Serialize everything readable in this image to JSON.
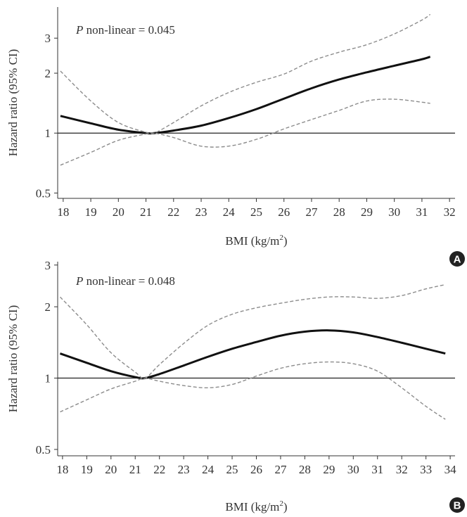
{
  "chart_data": [
    {
      "type": "line",
      "panel_label": "A",
      "annotation": {
        "p": "P",
        "rest": " non-linear = 0.045"
      },
      "xlabel": {
        "main": "BMI (kg/m",
        "sup": "2",
        "close": ")"
      },
      "ylabel": "Hazard ratio (95% CI)",
      "y_scale": "log",
      "xlim": [
        17.8,
        32.2
      ],
      "ylim": [
        0.47,
        4.3
      ],
      "xticks": [
        18,
        19,
        20,
        21,
        22,
        23,
        24,
        25,
        26,
        27,
        28,
        29,
        30,
        31,
        32
      ],
      "yticks": [
        0.5,
        1,
        2,
        3
      ],
      "ytick_labels": [
        "0.5",
        "1",
        "2",
        "3"
      ],
      "reference_line": 1,
      "series": [
        {
          "role": "estimate",
          "style": "solid",
          "x": [
            17.9,
            19,
            20,
            21,
            21.3,
            22,
            23,
            24,
            25,
            26,
            27,
            28,
            29,
            30,
            31,
            31.3
          ],
          "y": [
            1.22,
            1.12,
            1.04,
            1.0,
            1.0,
            1.03,
            1.09,
            1.19,
            1.32,
            1.49,
            1.68,
            1.86,
            2.02,
            2.18,
            2.35,
            2.42
          ]
        },
        {
          "role": "upper",
          "style": "dashed",
          "x": [
            17.9,
            19,
            20,
            21,
            21.3,
            22,
            23,
            24,
            25,
            26,
            27,
            28,
            29,
            30,
            31,
            31.3
          ],
          "y": [
            2.05,
            1.45,
            1.13,
            1.01,
            1.0,
            1.13,
            1.37,
            1.6,
            1.8,
            1.98,
            2.3,
            2.55,
            2.78,
            3.15,
            3.7,
            3.95
          ]
        },
        {
          "role": "lower",
          "style": "dashed",
          "x": [
            17.9,
            19,
            20,
            21,
            21.3,
            22,
            23,
            24,
            25,
            26,
            27,
            28,
            29,
            30,
            31,
            31.3
          ],
          "y": [
            0.69,
            0.8,
            0.92,
            0.99,
            1.0,
            0.95,
            0.86,
            0.86,
            0.93,
            1.05,
            1.17,
            1.3,
            1.45,
            1.48,
            1.43,
            1.41
          ]
        }
      ]
    },
    {
      "type": "line",
      "panel_label": "B",
      "annotation": {
        "p": "P",
        "rest": " non-linear = 0.048"
      },
      "xlabel": {
        "main": "BMI (kg/m",
        "sup": "2",
        "close": ")"
      },
      "ylabel": "Hazard ratio (95% CI)",
      "y_scale": "log",
      "xlim": [
        17.8,
        34.2
      ],
      "ylim": [
        0.47,
        3.1
      ],
      "xticks": [
        18,
        19,
        20,
        21,
        22,
        23,
        24,
        25,
        26,
        27,
        28,
        29,
        30,
        31,
        32,
        33,
        34
      ],
      "yticks": [
        0.5,
        1,
        2,
        3
      ],
      "ytick_labels": [
        "0.5",
        "1",
        "2",
        "3"
      ],
      "reference_line": 1,
      "series": [
        {
          "role": "estimate",
          "style": "solid",
          "x": [
            17.9,
            19,
            20,
            21,
            21.4,
            22,
            23,
            24,
            25,
            26,
            27,
            28,
            29,
            30,
            31,
            32,
            33,
            33.8
          ],
          "y": [
            1.27,
            1.16,
            1.07,
            1.01,
            1.0,
            1.04,
            1.13,
            1.23,
            1.33,
            1.42,
            1.51,
            1.57,
            1.59,
            1.56,
            1.49,
            1.41,
            1.33,
            1.27
          ]
        },
        {
          "role": "upper",
          "style": "dashed",
          "x": [
            17.9,
            19,
            20,
            21,
            21.4,
            22,
            23,
            24,
            25,
            26,
            27,
            28,
            29,
            30,
            31,
            32,
            33,
            33.8
          ],
          "y": [
            2.2,
            1.68,
            1.28,
            1.06,
            1.0,
            1.14,
            1.4,
            1.67,
            1.86,
            1.98,
            2.07,
            2.15,
            2.2,
            2.2,
            2.17,
            2.23,
            2.38,
            2.48
          ]
        },
        {
          "role": "lower",
          "style": "dashed",
          "x": [
            17.9,
            19,
            20,
            21,
            21.4,
            22,
            23,
            24,
            25,
            26,
            27,
            28,
            29,
            30,
            31,
            32,
            33,
            33.8
          ],
          "y": [
            0.72,
            0.81,
            0.9,
            0.97,
            1.0,
            0.97,
            0.93,
            0.91,
            0.94,
            1.02,
            1.1,
            1.15,
            1.17,
            1.15,
            1.07,
            0.91,
            0.76,
            0.67
          ]
        }
      ]
    }
  ]
}
